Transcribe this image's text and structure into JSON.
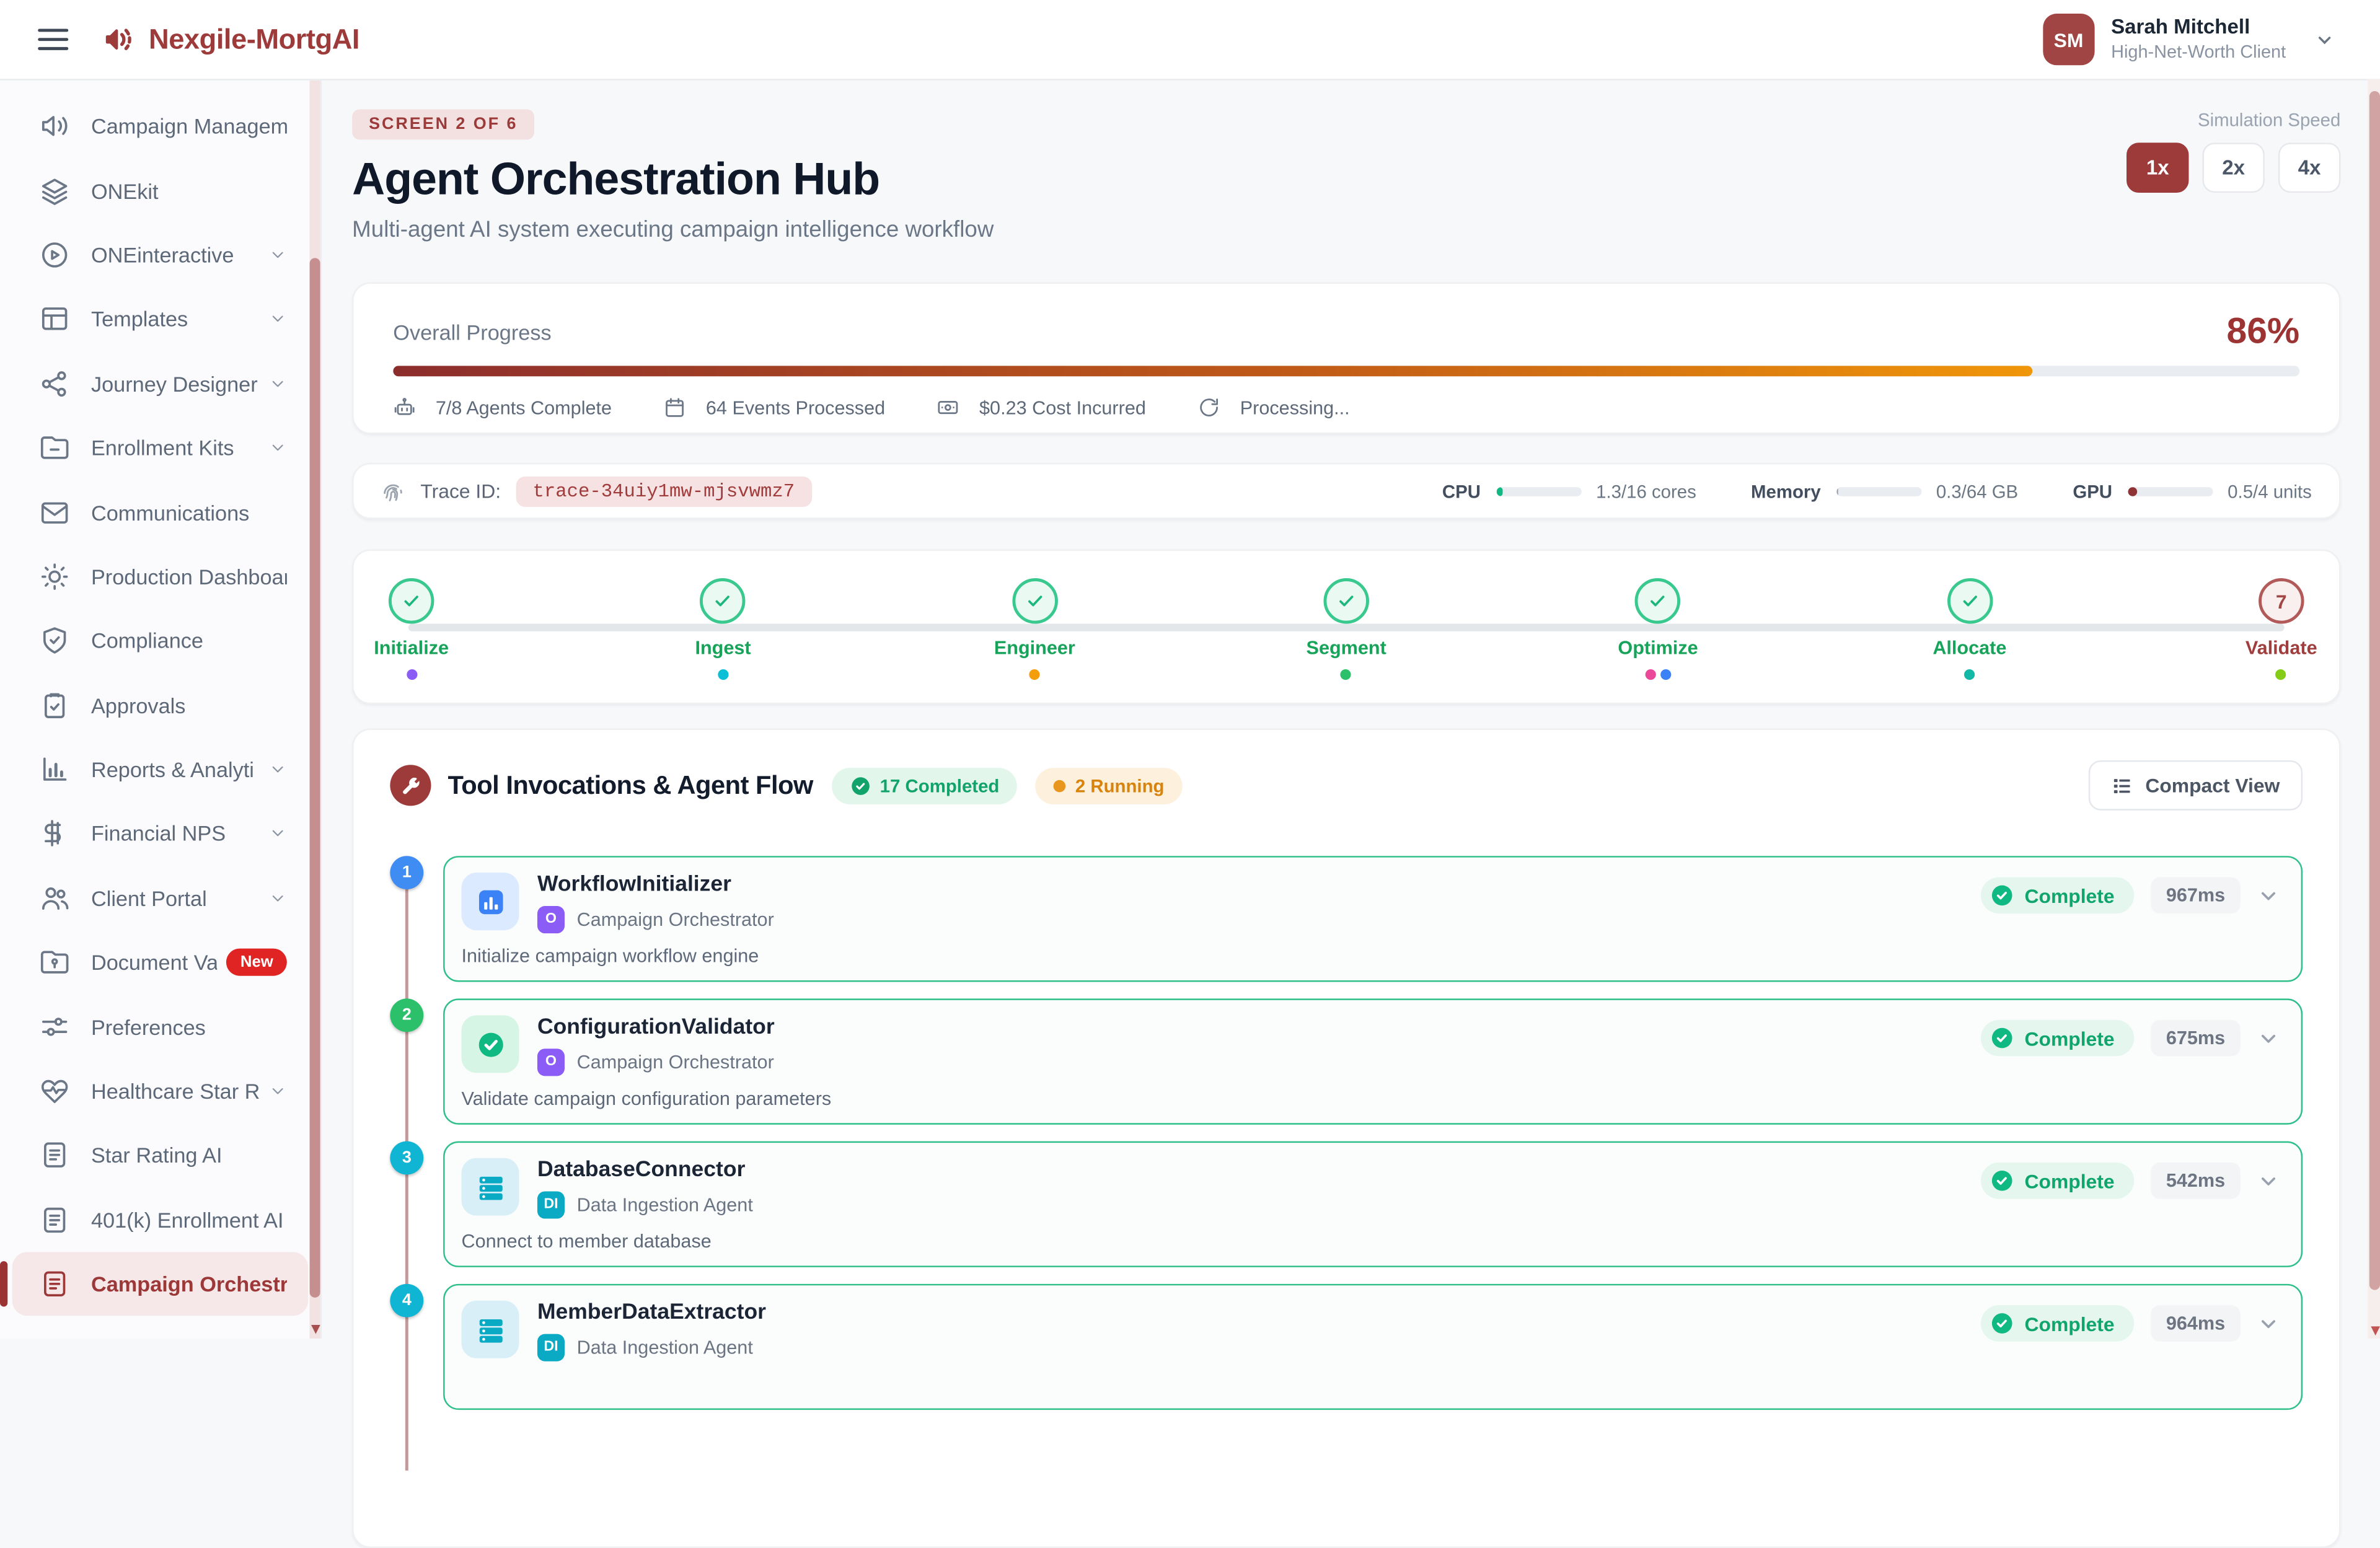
{
  "header": {
    "brand": "Nexgile-MortgAI",
    "user": {
      "initials": "SM",
      "name": "Sarah Mitchell",
      "role": "High-Net-Worth Client"
    }
  },
  "sidebar": {
    "items": [
      {
        "label": "Campaign Manageme",
        "icon": "megaphone-icon",
        "chevron": false
      },
      {
        "label": "ONEkit",
        "icon": "layers-icon",
        "chevron": false
      },
      {
        "label": "ONEinteractive",
        "icon": "play-circle-icon",
        "chevron": true
      },
      {
        "label": "Templates",
        "icon": "layout-icon",
        "chevron": true
      },
      {
        "label": "Journey Designer",
        "icon": "share-icon",
        "chevron": true
      },
      {
        "label": "Enrollment Kits",
        "icon": "folder-icon",
        "chevron": true
      },
      {
        "label": "Communications",
        "icon": "mail-icon",
        "chevron": false
      },
      {
        "label": "Production Dashboard",
        "icon": "sun-icon",
        "chevron": false
      },
      {
        "label": "Compliance",
        "icon": "shield-check-icon",
        "chevron": false
      },
      {
        "label": "Approvals",
        "icon": "clipboard-check-icon",
        "chevron": false
      },
      {
        "label": "Reports & Analyti",
        "icon": "bar-chart-icon",
        "chevron": true
      },
      {
        "label": "Financial NPS",
        "icon": "dollar-icon",
        "chevron": true
      },
      {
        "label": "Client Portal",
        "icon": "users-icon",
        "chevron": true
      },
      {
        "label": "Document Vau",
        "icon": "folder-lock-icon",
        "chevron": false,
        "badge": "New"
      },
      {
        "label": "Preferences",
        "icon": "sliders-icon",
        "chevron": false
      },
      {
        "label": "Healthcare Star R",
        "icon": "heart-pulse-icon",
        "chevron": true
      },
      {
        "label": "Star Rating AI",
        "icon": "file-text-icon",
        "chevron": false
      },
      {
        "label": "401(k) Enrollment AI",
        "icon": "file-text-icon",
        "chevron": false
      },
      {
        "label": "Campaign Orchestrat",
        "icon": "file-text-icon",
        "chevron": false,
        "active": true
      }
    ]
  },
  "page": {
    "screen_badge": "SCREEN 2 OF 6",
    "title": "Agent Orchestration Hub",
    "subtitle": "Multi-agent AI system executing campaign intelligence workflow",
    "speed": {
      "label": "Simulation Speed",
      "options": [
        "1x",
        "2x",
        "4x"
      ],
      "active": "1x"
    }
  },
  "progress": {
    "label": "Overall Progress",
    "percent_text": "86%",
    "percent_value": 86,
    "stats": [
      {
        "icon": "robot-icon",
        "text": "7/8 Agents Complete"
      },
      {
        "icon": "calendar-icon",
        "text": "64 Events Processed"
      },
      {
        "icon": "banknote-icon",
        "text": "$0.23 Cost Incurred"
      },
      {
        "icon": "refresh-icon",
        "text": "Processing..."
      }
    ]
  },
  "trace": {
    "label": "Trace ID:",
    "value": "trace-34uiy1mw-mjsvwmz7",
    "resources": [
      {
        "label": "CPU",
        "value": "1.3/16 cores",
        "fill_pct": 8,
        "fill_color": "#10b981"
      },
      {
        "label": "Memory",
        "value": "0.3/64 GB",
        "fill_pct": 2,
        "fill_color": "#9ca3af"
      },
      {
        "label": "GPU",
        "value": "0.5/4 units",
        "fill_pct": 12,
        "fill_color": "#8e3434"
      }
    ]
  },
  "steps": {
    "items": [
      {
        "label": "Initialize",
        "status": "complete",
        "dots": [
          "#8b5cf6"
        ]
      },
      {
        "label": "Ingest",
        "status": "complete",
        "dots": [
          "#0bc0d6"
        ]
      },
      {
        "label": "Engineer",
        "status": "complete",
        "dots": [
          "#f59e0b"
        ]
      },
      {
        "label": "Segment",
        "status": "complete",
        "dots": [
          "#2cc06a"
        ]
      },
      {
        "label": "Optimize",
        "status": "complete",
        "dots": [
          "#ec4899",
          "#3b82f6"
        ]
      },
      {
        "label": "Allocate",
        "status": "complete",
        "dots": [
          "#14b8a6"
        ]
      },
      {
        "label": "Validate",
        "status": "current",
        "number": "7",
        "dots": [
          "#84cc16"
        ]
      }
    ]
  },
  "tools": {
    "title": "Tool Invocations & Agent Flow",
    "completed_badge": "17 Completed",
    "running_badge": "2 Running",
    "compact_view_label": "Compact View",
    "items": [
      {
        "num": "1",
        "num_color": "#3f8cf3",
        "icon": "chart",
        "tile_bg": "#dbeafe",
        "name": "WorkflowInitializer",
        "agent_badge": "O",
        "agent_badge_color": "#8b5cf6",
        "agent": "Campaign Orchestrator",
        "desc": "Initialize campaign workflow engine",
        "status": "Complete",
        "time": "967ms"
      },
      {
        "num": "2",
        "num_color": "#2cc06a",
        "icon": "seal",
        "tile_bg": "#d7f5e5",
        "name": "ConfigurationValidator",
        "agent_badge": "O",
        "agent_badge_color": "#8b5cf6",
        "agent": "Campaign Orchestrator",
        "desc": "Validate campaign configuration parameters",
        "status": "Complete",
        "time": "675ms"
      },
      {
        "num": "3",
        "num_color": "#11b5d4",
        "icon": "server",
        "tile_bg": "#d8eff7",
        "name": "DatabaseConnector",
        "agent_badge": "DI",
        "agent_badge_color": "#0aa9c4",
        "agent": "Data Ingestion Agent",
        "desc": "Connect to member database",
        "status": "Complete",
        "time": "542ms"
      },
      {
        "num": "4",
        "num_color": "#11b5d4",
        "icon": "server",
        "tile_bg": "#d8eff7",
        "name": "MemberDataExtractor",
        "agent_badge": "DI",
        "agent_badge_color": "#0aa9c4",
        "agent": "Data Ingestion Agent",
        "desc": "",
        "status": "Complete",
        "time": "964ms"
      }
    ]
  }
}
